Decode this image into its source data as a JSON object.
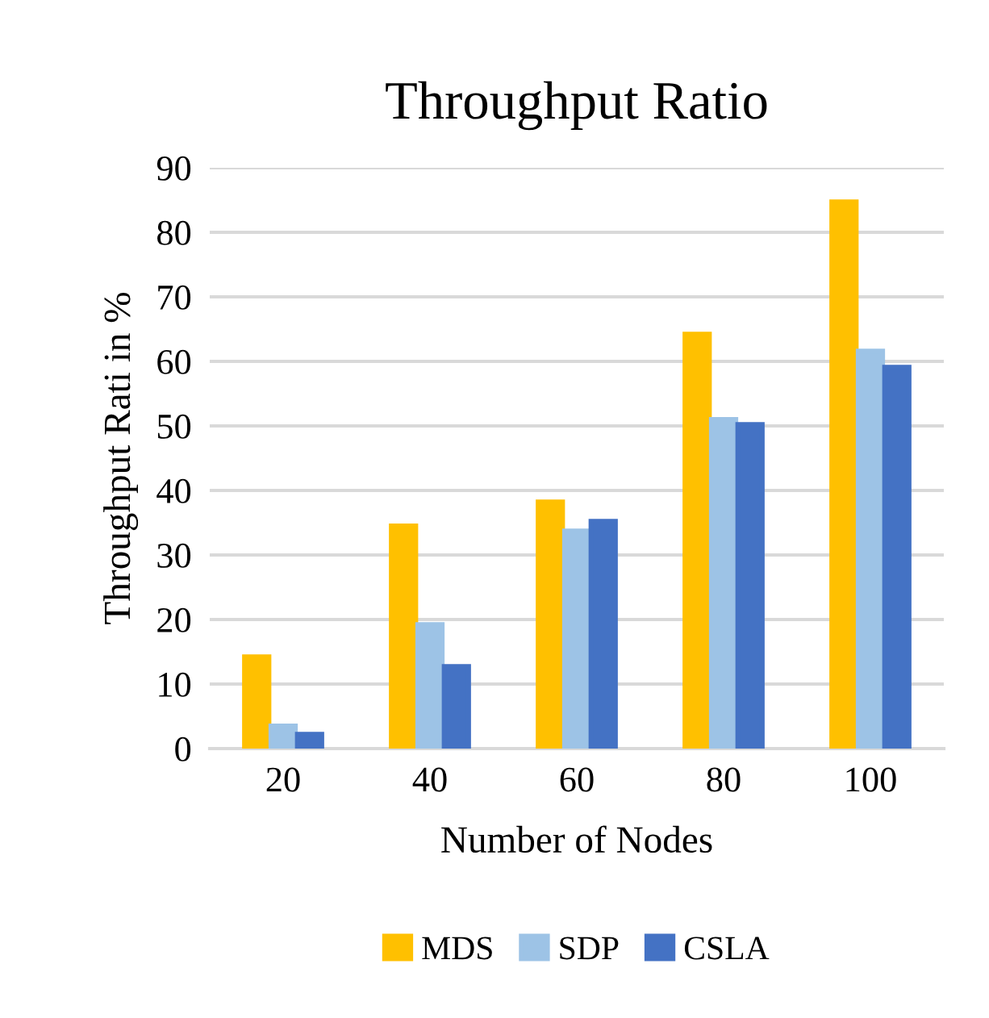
{
  "chart_data": {
    "type": "bar",
    "title": "Throughput Ratio",
    "xlabel": "Number of Nodes",
    "ylabel": "Throughput Rati in %",
    "categories": [
      "20",
      "40",
      "60",
      "80",
      "100"
    ],
    "series": [
      {
        "name": "MDS",
        "color": "#ffc000",
        "values": [
          14.2,
          34.5,
          38.2,
          64.2,
          84.7
        ]
      },
      {
        "name": "SDP",
        "color": "#9dc3e6",
        "values": [
          3.5,
          19.2,
          33.7,
          51,
          61.6
        ]
      },
      {
        "name": "CSLA",
        "color": "#4472c4",
        "values": [
          2.2,
          12.7,
          35.2,
          50.2,
          59.1
        ]
      }
    ],
    "ylim": [
      0,
      90
    ],
    "yticks": [
      0,
      10,
      20,
      30,
      40,
      50,
      60,
      70,
      80,
      90
    ],
    "grid": "y",
    "legend": "bottom"
  }
}
